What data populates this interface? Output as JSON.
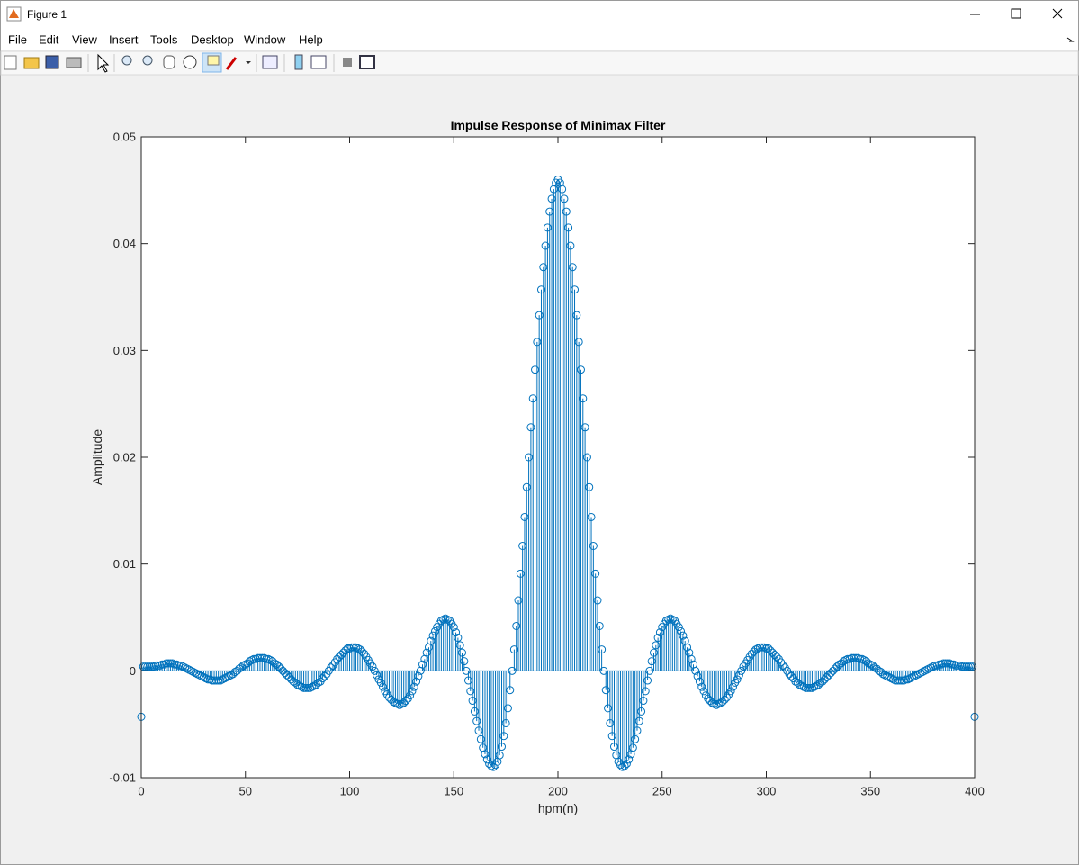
{
  "window": {
    "title": "Figure 1",
    "menu": [
      "File",
      "Edit",
      "View",
      "Insert",
      "Tools",
      "Desktop",
      "Window",
      "Help"
    ]
  },
  "chart_data": {
    "type": "stem",
    "title": "Impulse Response of Minimax Filter",
    "x_label": "hpm(n)",
    "y_label": "Amplitude",
    "color": "#0072bd",
    "xlim": [
      0,
      400
    ],
    "xticks": [
      0,
      50,
      100,
      150,
      200,
      250,
      300,
      350,
      400
    ],
    "ylim": [
      -0.01,
      0.05
    ],
    "yticks": [
      -0.01,
      0,
      0.01,
      0.02,
      0.03,
      0.04,
      0.05
    ],
    "x": [
      0,
      1,
      2,
      3,
      4,
      5,
      6,
      7,
      8,
      9,
      10,
      11,
      12,
      13,
      14,
      15,
      16,
      17,
      18,
      19,
      20,
      21,
      22,
      23,
      24,
      25,
      26,
      27,
      28,
      29,
      30,
      31,
      32,
      33,
      34,
      35,
      36,
      37,
      38,
      39,
      40,
      41,
      42,
      43,
      44,
      45,
      46,
      47,
      48,
      49,
      50,
      51,
      52,
      53,
      54,
      55,
      56,
      57,
      58,
      59,
      60,
      61,
      62,
      63,
      64,
      65,
      66,
      67,
      68,
      69,
      70,
      71,
      72,
      73,
      74,
      75,
      76,
      77,
      78,
      79,
      80,
      81,
      82,
      83,
      84,
      85,
      86,
      87,
      88,
      89,
      90,
      91,
      92,
      93,
      94,
      95,
      96,
      97,
      98,
      99,
      100,
      101,
      102,
      103,
      104,
      105,
      106,
      107,
      108,
      109,
      110,
      111,
      112,
      113,
      114,
      115,
      116,
      117,
      118,
      119,
      120,
      121,
      122,
      123,
      124,
      125,
      126,
      127,
      128,
      129,
      130,
      131,
      132,
      133,
      134,
      135,
      136,
      137,
      138,
      139,
      140,
      141,
      142,
      143,
      144,
      145,
      146,
      147,
      148,
      149,
      150,
      151,
      152,
      153,
      154,
      155,
      156,
      157,
      158,
      159,
      160,
      161,
      162,
      163,
      164,
      165,
      166,
      167,
      168,
      169,
      170,
      171,
      172,
      173,
      174,
      175,
      176,
      177,
      178,
      179,
      180,
      181,
      182,
      183,
      184,
      185,
      186,
      187,
      188,
      189,
      190,
      191,
      192,
      193,
      194,
      195,
      196,
      197,
      198,
      199,
      200,
      201,
      202,
      203,
      204,
      205,
      206,
      207,
      208,
      209,
      210,
      211,
      212,
      213,
      214,
      215,
      216,
      217,
      218,
      219,
      220,
      221,
      222,
      223,
      224,
      225,
      226,
      227,
      228,
      229,
      230,
      231,
      232,
      233,
      234,
      235,
      236,
      237,
      238,
      239,
      240,
      241,
      242,
      243,
      244,
      245,
      246,
      247,
      248,
      249,
      250,
      251,
      252,
      253,
      254,
      255,
      256,
      257,
      258,
      259,
      260,
      261,
      262,
      263,
      264,
      265,
      266,
      267,
      268,
      269,
      270,
      271,
      272,
      273,
      274,
      275,
      276,
      277,
      278,
      279,
      280,
      281,
      282,
      283,
      284,
      285,
      286,
      287,
      288,
      289,
      290,
      291,
      292,
      293,
      294,
      295,
      296,
      297,
      298,
      299,
      300,
      301,
      302,
      303,
      304,
      305,
      306,
      307,
      308,
      309,
      310,
      311,
      312,
      313,
      314,
      315,
      316,
      317,
      318,
      319,
      320,
      321,
      322,
      323,
      324,
      325,
      326,
      327,
      328,
      329,
      330,
      331,
      332,
      333,
      334,
      335,
      336,
      337,
      338,
      339,
      340,
      341,
      342,
      343,
      344,
      345,
      346,
      347,
      348,
      349,
      350,
      351,
      352,
      353,
      354,
      355,
      356,
      357,
      358,
      359,
      360,
      361,
      362,
      363,
      364,
      365,
      366,
      367,
      368,
      369,
      370,
      371,
      372,
      373,
      374,
      375,
      376,
      377,
      378,
      379,
      380,
      381,
      382,
      383,
      384,
      385,
      386,
      387,
      388,
      389,
      390,
      391,
      392,
      393,
      394,
      395,
      396,
      397,
      398,
      399,
      400
    ],
    "values": [
      -0.0043,
      0.0004,
      0.0004,
      0.0004,
      0.0004,
      0.0004,
      0.0004,
      0.0005,
      0.0005,
      0.0005,
      0.0006,
      0.0006,
      0.0007,
      0.0007,
      0.0007,
      0.0007,
      0.0006,
      0.0006,
      0.0005,
      0.0005,
      0.0004,
      0.0003,
      0.0002,
      0.0001,
      0,
      -0.0001,
      -0.0002,
      -0.0003,
      -0.0004,
      -0.0005,
      -0.0006,
      -0.0007,
      -0.0008,
      -0.0008,
      -0.0009,
      -0.0009,
      -0.0009,
      -0.0009,
      -0.0009,
      -0.0008,
      -0.0007,
      -0.0006,
      -0.0005,
      -0.0004,
      -0.0003,
      -0.0001,
      0,
      0.0002,
      0.0003,
      0.0005,
      0.0006,
      0.0007,
      0.0009,
      0.001,
      0.0011,
      0.0011,
      0.0012,
      0.0012,
      0.0012,
      0.0012,
      0.0011,
      0.0011,
      0.001,
      0.0009,
      0.0007,
      0.0006,
      0.0004,
      0.0002,
      0,
      -0.0002,
      -0.0004,
      -0.0006,
      -0.0008,
      -0.001,
      -0.0011,
      -0.0013,
      -0.0014,
      -0.0015,
      -0.0016,
      -0.0016,
      -0.0016,
      -0.0016,
      -0.0015,
      -0.0014,
      -0.0013,
      -0.0011,
      -0.001,
      -0.0007,
      -0.0005,
      -0.0003,
      0,
      0.0003,
      0.0005,
      0.0008,
      0.0011,
      0.0013,
      0.0015,
      0.0017,
      0.0019,
      0.0021,
      0.0021,
      0.0022,
      0.0022,
      0.0022,
      0.0021,
      0.002,
      0.0018,
      0.0016,
      0.0013,
      0.001,
      0.0007,
      0.0004,
      0,
      -0.0004,
      -0.0008,
      -0.0011,
      -0.0015,
      -0.0019,
      -0.0022,
      -0.0025,
      -0.0027,
      -0.0029,
      -0.003,
      -0.0031,
      -0.0032,
      -0.0031,
      -0.003,
      -0.0028,
      -0.0026,
      -0.0023,
      -0.0019,
      -0.0015,
      -0.001,
      -0.0005,
      0,
      0.0006,
      0.0011,
      0.0017,
      0.0022,
      0.0028,
      0.0033,
      0.0037,
      0.0041,
      0.0044,
      0.0047,
      0.0048,
      0.0049,
      0.0048,
      0.0047,
      0.0044,
      0.0041,
      0.0036,
      0.0031,
      0.0024,
      0.0017,
      0.0009,
      0,
      -0.0009,
      -0.0019,
      -0.0028,
      -0.0038,
      -0.0047,
      -0.0056,
      -0.0064,
      -0.0072,
      -0.0078,
      -0.0083,
      -0.0087,
      -0.0089,
      -0.009,
      -0.0088,
      -0.0085,
      -0.0079,
      -0.0071,
      -0.0061,
      -0.0049,
      -0.0035,
      -0.0018,
      0,
      0.002,
      0.0042,
      0.0066,
      0.0091,
      0.0117,
      0.0144,
      0.0172,
      0.02,
      0.0228,
      0.0255,
      0.0282,
      0.0308,
      0.0333,
      0.0357,
      0.0378,
      0.0398,
      0.0415,
      0.043,
      0.0442,
      0.0451,
      0.0457,
      0.046,
      0.0457,
      0.0451,
      0.0442,
      0.043,
      0.0415,
      0.0398,
      0.0378,
      0.0357,
      0.0333,
      0.0308,
      0.0282,
      0.0255,
      0.0228,
      0.02,
      0.0172,
      0.0144,
      0.0117,
      0.0091,
      0.0066,
      0.0042,
      0.002,
      0,
      -0.0018,
      -0.0035,
      -0.0049,
      -0.0061,
      -0.0071,
      -0.0079,
      -0.0085,
      -0.0088,
      -0.009,
      -0.0089,
      -0.0087,
      -0.0083,
      -0.0078,
      -0.0072,
      -0.0064,
      -0.0056,
      -0.0047,
      -0.0038,
      -0.0028,
      -0.0019,
      -0.0009,
      0,
      0.0009,
      0.0017,
      0.0024,
      0.0031,
      0.0036,
      0.0041,
      0.0044,
      0.0047,
      0.0048,
      0.0049,
      0.0048,
      0.0047,
      0.0044,
      0.0041,
      0.0037,
      0.0033,
      0.0028,
      0.0022,
      0.0017,
      0.0011,
      0.0006,
      0,
      -0.0005,
      -0.001,
      -0.0015,
      -0.0019,
      -0.0023,
      -0.0026,
      -0.0028,
      -0.003,
      -0.0031,
      -0.0032,
      -0.0031,
      -0.003,
      -0.0029,
      -0.0027,
      -0.0025,
      -0.0022,
      -0.0019,
      -0.0015,
      -0.0011,
      -0.0008,
      -0.0004,
      0,
      0.0004,
      0.0007,
      0.001,
      0.0013,
      0.0016,
      0.0018,
      0.002,
      0.0021,
      0.0022,
      0.0022,
      0.0022,
      0.0021,
      0.0021,
      0.0019,
      0.0017,
      0.0015,
      0.0013,
      0.0011,
      0.0008,
      0.0005,
      0.0003,
      0,
      -0.0003,
      -0.0005,
      -0.0007,
      -0.001,
      -0.0011,
      -0.0013,
      -0.0014,
      -0.0015,
      -0.0016,
      -0.0016,
      -0.0016,
      -0.0016,
      -0.0015,
      -0.0014,
      -0.0013,
      -0.0011,
      -0.001,
      -0.0008,
      -0.0006,
      -0.0004,
      -0.0002,
      0,
      0.0002,
      0.0004,
      0.0006,
      0.0007,
      0.0009,
      0.001,
      0.0011,
      0.0011,
      0.0012,
      0.0012,
      0.0012,
      0.0012,
      0.0011,
      0.0011,
      0.001,
      0.0009,
      0.0007,
      0.0006,
      0.0005,
      0.0003,
      0.0002,
      0,
      -0.0001,
      -0.0003,
      -0.0004,
      -0.0005,
      -0.0006,
      -0.0007,
      -0.0008,
      -0.0009,
      -0.0009,
      -0.0009,
      -0.0009,
      -0.0009,
      -0.0008,
      -0.0008,
      -0.0007,
      -0.0006,
      -0.0005,
      -0.0004,
      -0.0003,
      -0.0002,
      -0.0001,
      0,
      0.0001,
      0.0002,
      0.0003,
      0.0004,
      0.0005,
      0.0005,
      0.0006,
      0.0006,
      0.0007,
      0.0007,
      0.0007,
      0.0007,
      0.0006,
      0.0006,
      0.0005,
      0.0005,
      0.0005,
      0.0004,
      0.0004,
      0.0004,
      0.0004,
      0.0004,
      0.0004,
      -0.0043
    ]
  }
}
